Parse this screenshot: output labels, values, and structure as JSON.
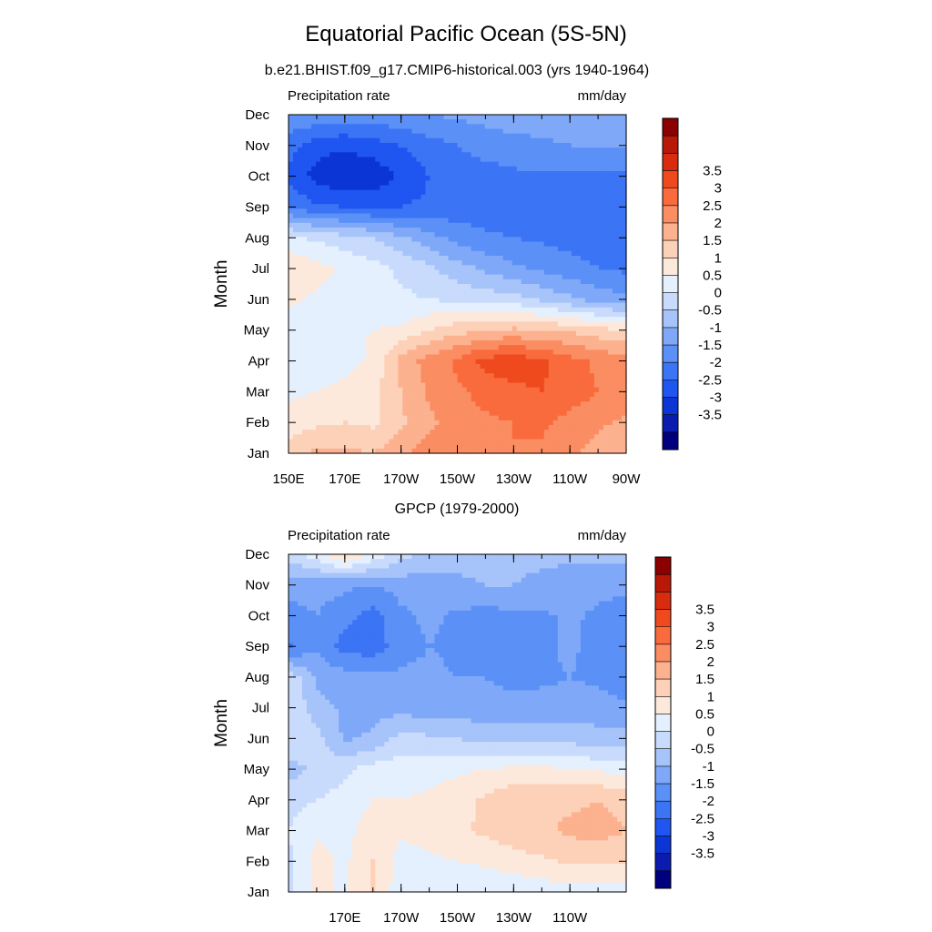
{
  "figure": {
    "title": "Equatorial Pacific Ocean (5S-5N)"
  },
  "colorbar": {
    "colors": [
      "#00007f",
      "#0a1bb0",
      "#0b35d4",
      "#1f55f0",
      "#3b74f5",
      "#5b90f7",
      "#7fa9f8",
      "#a6c3fa",
      "#c9dbfc",
      "#e5f0fe",
      "#fde9dc",
      "#fdd0b8",
      "#fcb18f",
      "#fb8d62",
      "#f96b3d",
      "#ee4a1e",
      "#d92c0e",
      "#b81807",
      "#8b0000"
    ],
    "labels": [
      "-3.5",
      "-3",
      "-2.5",
      "-2",
      "-1.5",
      "-1",
      "-0.5",
      "0",
      "0.5",
      "1",
      "1.5",
      "2",
      "2.5",
      "3",
      "3.5"
    ]
  },
  "chart_data": [
    {
      "type": "heatmap",
      "title": "b.e21.BHIST.f09_g17.CMIP6-historical.003 (yrs 1940-1964)",
      "left_label": "Precipitation rate",
      "right_label": "mm/day",
      "ylabel": "Month",
      "xlabel": "",
      "x_ticks": [
        "150E",
        "170E",
        "170W",
        "150W",
        "130W",
        "110W",
        "90W"
      ],
      "y_ticks": [
        "Jan",
        "Feb",
        "Mar",
        "Apr",
        "May",
        "Jun",
        "Jul",
        "Aug",
        "Sep",
        "Oct",
        "Nov",
        "Dec"
      ],
      "x_range": [
        150,
        270
      ],
      "y_range": [
        1,
        12
      ],
      "anomaly_levels": [
        [
          1.7,
          2.1,
          2.1,
          2.0,
          2.4,
          2.7,
          2.9,
          2.9,
          3.0,
          2.9,
          2.6,
          2.3,
          2.1
        ],
        [
          1.2,
          1.4,
          1.5,
          1.4,
          1.9,
          2.4,
          2.7,
          2.9,
          3.0,
          3.1,
          2.8,
          2.6,
          2.4
        ],
        [
          0.9,
          1.0,
          1.2,
          1.3,
          2.0,
          2.6,
          2.9,
          3.2,
          3.4,
          3.5,
          3.3,
          3.0,
          2.8
        ],
        [
          0.8,
          0.6,
          0.8,
          1.1,
          2.2,
          2.7,
          3.1,
          3.7,
          3.8,
          3.6,
          3.2,
          2.9,
          2.7
        ],
        [
          0.7,
          0.8,
          0.9,
          1.0,
          1.1,
          1.5,
          1.8,
          2.0,
          2.1,
          2.0,
          1.9,
          1.7,
          1.5
        ],
        [
          1.1,
          0.9,
          0.8,
          0.6,
          0.6,
          0.5,
          0.4,
          0.3,
          0.2,
          -0.1,
          -0.4,
          -0.7,
          -0.9
        ],
        [
          1.5,
          1.2,
          0.9,
          0.7,
          0.4,
          0.1,
          -0.3,
          -0.6,
          -0.9,
          -1.1,
          -1.3,
          -1.5,
          -1.6
        ],
        [
          0.6,
          0.4,
          0.2,
          0.0,
          -0.4,
          -0.8,
          -1.2,
          -1.4,
          -1.5,
          -1.6,
          -1.7,
          -1.8,
          -1.8
        ],
        [
          -1.6,
          -1.9,
          -2.0,
          -2.1,
          -2.0,
          -1.9,
          -1.8,
          -1.8,
          -1.8,
          -1.8,
          -1.8,
          -1.8,
          -1.8
        ],
        [
          -2.1,
          -2.7,
          -3.0,
          -2.9,
          -2.4,
          -2.0,
          -1.8,
          -1.7,
          -1.6,
          -1.6,
          -1.6,
          -1.6,
          -1.6
        ],
        [
          -1.8,
          -2.3,
          -2.4,
          -2.2,
          -2.0,
          -1.7,
          -1.5,
          -1.3,
          -1.2,
          -1.1,
          -1.0,
          -1.0,
          -0.9
        ],
        [
          -1.0,
          -1.1,
          -1.2,
          -1.2,
          -1.1,
          -1.0,
          -0.9,
          -0.8,
          -0.7,
          -0.7,
          -0.7,
          -0.7,
          -0.7
        ]
      ]
    },
    {
      "type": "heatmap",
      "title": "GPCP (1979-2000)",
      "left_label": "Precipitation rate",
      "right_label": "mm/day",
      "ylabel": "Month",
      "xlabel": "",
      "x_ticks": [
        "170E",
        "170W",
        "150W",
        "130W",
        "110W"
      ],
      "y_ticks": [
        "Jan",
        "Feb",
        "Mar",
        "Apr",
        "May",
        "Jun",
        "Jul",
        "Aug",
        "Sep",
        "Oct",
        "Nov",
        "Dec"
      ],
      "x_range": [
        150,
        270
      ],
      "y_range": [
        1,
        12
      ],
      "anomaly_levels": [
        [
          0.3,
          1.2,
          0.9,
          1.5,
          0.7,
          0.5,
          0.5,
          0.6,
          0.6,
          0.7,
          0.8,
          0.8,
          0.8
        ],
        [
          0.4,
          1.2,
          0.9,
          1.5,
          0.8,
          0.9,
          1.0,
          1.1,
          1.3,
          1.4,
          1.6,
          1.6,
          1.5
        ],
        [
          0.5,
          0.9,
          0.8,
          1.3,
          1.1,
          1.2,
          1.4,
          1.6,
          1.8,
          1.9,
          2.1,
          2.2,
          2.0
        ],
        [
          0.3,
          0.5,
          0.7,
          1.0,
          1.0,
          1.1,
          1.3,
          1.6,
          1.9,
          2.0,
          1.9,
          2.0,
          1.8
        ],
        [
          -0.2,
          0.1,
          0.4,
          0.7,
          0.8,
          0.8,
          0.9,
          1.0,
          1.1,
          1.1,
          1.0,
          0.9,
          0.8
        ],
        [
          0.5,
          0.2,
          -0.6,
          -0.4,
          0.2,
          0.1,
          0.0,
          -0.2,
          -0.2,
          -0.1,
          -0.2,
          -0.3,
          -0.3
        ],
        [
          0.5,
          -0.3,
          -0.6,
          -0.7,
          -0.7,
          -0.8,
          -0.8,
          -0.8,
          -0.8,
          -0.8,
          -0.8,
          -0.8,
          -0.9
        ],
        [
          0.4,
          -0.6,
          -0.8,
          -0.9,
          -0.9,
          -0.9,
          -1.0,
          -1.0,
          -1.2,
          -1.1,
          -1.0,
          -1.1,
          -1.3
        ],
        [
          -1.6,
          -1.1,
          -1.7,
          -1.8,
          -1.2,
          -1.0,
          -1.1,
          -1.2,
          -1.1,
          -1.1,
          -0.9,
          -1.2,
          -1.4
        ],
        [
          -1.2,
          -1.0,
          -1.3,
          -1.7,
          -1.1,
          -0.9,
          -1.1,
          -1.2,
          -1.1,
          -1.1,
          -0.9,
          -1.1,
          -1.4
        ],
        [
          -0.8,
          -0.8,
          -0.9,
          -1.0,
          -0.8,
          -0.7,
          -0.6,
          -0.5,
          -0.5,
          -0.6,
          -0.7,
          -0.8,
          -0.8
        ],
        [
          0.2,
          0.8,
          1.6,
          0.9,
          0.2,
          -0.2,
          -0.3,
          -0.3,
          -0.4,
          -0.4,
          -0.4,
          -0.4,
          -0.4
        ]
      ]
    }
  ]
}
